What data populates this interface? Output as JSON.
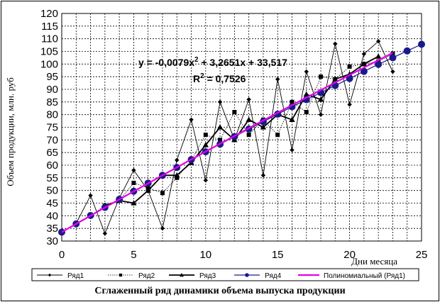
{
  "chart_data": {
    "type": "line",
    "title": "Сглаженный ряд динамики объема выпуска продукции",
    "xlabel": "Дни месяца",
    "ylabel": "Объем продукции, млн. руб",
    "xlim": [
      0,
      25
    ],
    "ylim": [
      30,
      120
    ],
    "x_ticks": [
      "0",
      "5",
      "10",
      "15",
      "20",
      "25"
    ],
    "y_ticks": [
      "30",
      "35",
      "40",
      "45",
      "50",
      "55",
      "60",
      "65",
      "70",
      "75",
      "80",
      "85",
      "90",
      "95",
      "100",
      "105",
      "110",
      "115",
      "120"
    ],
    "grid": true,
    "legend_position": "bottom",
    "equation": "y = -0,0079x² + 3,2651x + 33,517",
    "equation_text": "y = -0,0079x",
    "equation_exp": "2",
    "equation_rest": " + 3,2651x + 33,517",
    "r2_text": "R",
    "r2_exp": "2",
    "r2_rest": " = 0,7526",
    "series": [
      {
        "name": "Ряд1",
        "marker": "diamond",
        "color": "#000000",
        "x": [
          1,
          2,
          3,
          4,
          5,
          6,
          7,
          8,
          9,
          10,
          11,
          12,
          13,
          14,
          15,
          16,
          17,
          18,
          19,
          20,
          21,
          22,
          23
        ],
        "y": [
          37,
          48,
          33,
          47,
          58,
          50,
          35,
          62,
          78,
          54,
          85,
          70,
          86,
          56,
          94,
          66,
          97,
          80,
          108,
          84,
          104,
          109,
          97
        ]
      },
      {
        "name": "Ряд2",
        "marker": "square",
        "color": "#000000",
        "x": [
          1,
          2,
          3,
          4,
          5,
          6,
          7,
          8,
          9,
          10,
          11,
          12,
          13,
          14,
          15,
          16,
          17,
          18,
          19,
          20,
          21,
          22,
          23
        ],
        "y": [
          37,
          40,
          44,
          46,
          53,
          51,
          49,
          55,
          62,
          72,
          70,
          81,
          72,
          78,
          72,
          85,
          81,
          95,
          94,
          99,
          100,
          101,
          104
        ]
      },
      {
        "name": "Ряд3",
        "marker": "triangle",
        "color": "#000000",
        "x": [
          3,
          4,
          5,
          6,
          7,
          8,
          9,
          10,
          11,
          12,
          13,
          14,
          15,
          16,
          17,
          18,
          19,
          20,
          21,
          22
        ],
        "y": [
          44,
          46,
          45,
          50,
          56,
          56,
          61,
          68,
          75,
          70,
          78,
          75,
          80,
          78,
          88,
          86,
          94,
          96,
          100,
          103
        ]
      },
      {
        "name": "Ряд4",
        "marker": "circle",
        "color": "#1a1a8c",
        "x": [
          0,
          1,
          2,
          3,
          4,
          5,
          6,
          7,
          8,
          9,
          10,
          11,
          12,
          13,
          14,
          15,
          16,
          17,
          18,
          19,
          20,
          21,
          22,
          23,
          24,
          25
        ],
        "y": [
          33.5,
          36.8,
          40.1,
          43.3,
          46.5,
          49.7,
          52.9,
          56.0,
          59.1,
          62.2,
          65.3,
          68.3,
          71.3,
          74.3,
          77.2,
          80.2,
          83.1,
          85.9,
          88.7,
          91.5,
          94.3,
          97.1,
          99.9,
          102.5,
          105.2,
          107.8
        ]
      },
      {
        "name": "Полиномиальный (Ряд1)",
        "marker": "none",
        "color": "#e600e6"
      }
    ]
  }
}
